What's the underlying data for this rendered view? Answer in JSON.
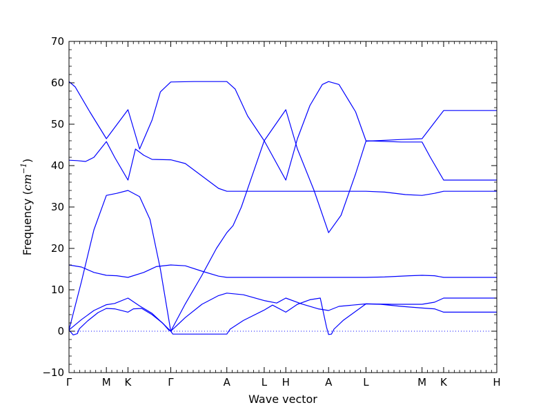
{
  "chart_data": {
    "type": "line",
    "title": "",
    "xlabel": "Wave vector",
    "ylabel_text": "Frequency (",
    "ylabel_unit": "cm",
    "ylabel_exp": "−1",
    "ylabel_close": ")",
    "ylim": [
      -10,
      70
    ],
    "xlim": [
      0,
      10.3
    ],
    "y_ticks": [
      -10,
      0,
      10,
      20,
      30,
      40,
      50,
      60,
      70
    ],
    "y_tick_labels": [
      "−10",
      "0",
      "10",
      "20",
      "30",
      "40",
      "50",
      "60",
      "70"
    ],
    "k_points": [
      {
        "x": 0.0,
        "label": "Γ"
      },
      {
        "x": 0.9,
        "label": "M"
      },
      {
        "x": 1.42,
        "label": "K"
      },
      {
        "x": 2.45,
        "label": "Γ"
      },
      {
        "x": 3.8,
        "label": "A"
      },
      {
        "x": 4.7,
        "label": "L"
      },
      {
        "x": 5.22,
        "label": "H"
      },
      {
        "x": 6.25,
        "label": "A"
      },
      {
        "x": 7.15,
        "label": "L"
      },
      {
        "x": 8.5,
        "label": "M"
      },
      {
        "x": 9.02,
        "label": "K"
      },
      {
        "x": 10.3,
        "label": "H"
      }
    ],
    "zero_line": {
      "y": 0,
      "style": "dotted",
      "color": "#0000ff"
    },
    "line_color": "#0000ff",
    "series": [
      {
        "points": [
          [
            0,
            0.3
          ],
          [
            0.1,
            -0.9
          ],
          [
            0.2,
            -0.6
          ],
          [
            0.25,
            0.6
          ],
          [
            0.45,
            2.5
          ],
          [
            0.7,
            4.5
          ],
          [
            0.9,
            5.5
          ],
          [
            1.1,
            5.4
          ],
          [
            1.3,
            4.9
          ],
          [
            1.42,
            4.6
          ],
          [
            1.55,
            5.4
          ],
          [
            1.75,
            5.5
          ],
          [
            2.0,
            4.0
          ],
          [
            2.25,
            2.0
          ],
          [
            2.4,
            0.3
          ],
          [
            2.45,
            0
          ],
          [
            2.5,
            -0.7
          ],
          [
            2.7,
            -0.7
          ],
          [
            3.3,
            -0.7
          ],
          [
            3.8,
            -0.7
          ],
          [
            3.88,
            0.5
          ],
          [
            4.2,
            2.6
          ],
          [
            4.7,
            5.1
          ],
          [
            4.9,
            6.3
          ],
          [
            5.22,
            4.6
          ],
          [
            5.5,
            6.5
          ],
          [
            5.8,
            7.6
          ],
          [
            6.05,
            8.0
          ],
          [
            6.2,
            1.0
          ],
          [
            6.25,
            -0.8
          ],
          [
            6.32,
            -0.7
          ],
          [
            6.38,
            0.5
          ],
          [
            6.6,
            2.6
          ],
          [
            7.15,
            6.6
          ],
          [
            7.5,
            6.5
          ],
          [
            8.0,
            6.0
          ],
          [
            8.5,
            5.6
          ],
          [
            8.8,
            5.4
          ],
          [
            9.02,
            4.6
          ],
          [
            10.3,
            4.6
          ]
        ]
      },
      {
        "points": [
          [
            0,
            0.3
          ],
          [
            0.3,
            2.8
          ],
          [
            0.6,
            5.0
          ],
          [
            0.9,
            6.4
          ],
          [
            1.1,
            6.7
          ],
          [
            1.42,
            8.0
          ],
          [
            1.7,
            6.1
          ],
          [
            2.0,
            4.3
          ],
          [
            2.3,
            1.5
          ],
          [
            2.45,
            0
          ],
          [
            2.8,
            3.3
          ],
          [
            3.2,
            6.5
          ],
          [
            3.6,
            8.6
          ],
          [
            3.8,
            9.2
          ],
          [
            4.2,
            8.8
          ],
          [
            4.7,
            7.4
          ],
          [
            5.0,
            6.8
          ],
          [
            5.22,
            8.0
          ],
          [
            5.6,
            6.6
          ],
          [
            6.0,
            5.4
          ],
          [
            6.25,
            5.0
          ],
          [
            6.5,
            6.0
          ],
          [
            7.15,
            6.6
          ],
          [
            7.8,
            6.5
          ],
          [
            8.5,
            6.5
          ],
          [
            8.8,
            7.0
          ],
          [
            9.02,
            8.0
          ],
          [
            10.3,
            8.0
          ]
        ]
      },
      {
        "points": [
          [
            0,
            16.0
          ],
          [
            0.3,
            15.5
          ],
          [
            0.6,
            14.2
          ],
          [
            0.9,
            13.5
          ],
          [
            1.15,
            13.4
          ],
          [
            1.42,
            13.0
          ],
          [
            1.8,
            14.2
          ],
          [
            2.1,
            15.6
          ],
          [
            2.45,
            16.0
          ],
          [
            2.8,
            15.8
          ],
          [
            3.2,
            14.5
          ],
          [
            3.6,
            13.3
          ],
          [
            3.8,
            13.0
          ],
          [
            4.7,
            13.0
          ],
          [
            5.22,
            13.0
          ],
          [
            6.25,
            13.0
          ],
          [
            7.15,
            13.0
          ],
          [
            7.6,
            13.1
          ],
          [
            8.2,
            13.4
          ],
          [
            8.5,
            13.5
          ],
          [
            8.8,
            13.4
          ],
          [
            9.02,
            13.0
          ],
          [
            10.3,
            13.0
          ]
        ]
      },
      {
        "points": [
          [
            0,
            0.3
          ],
          [
            0.3,
            12.0
          ],
          [
            0.6,
            24.5
          ],
          [
            0.9,
            32.8
          ],
          [
            1.15,
            33.3
          ],
          [
            1.42,
            34.0
          ],
          [
            1.7,
            32.5
          ],
          [
            1.95,
            27.0
          ],
          [
            2.2,
            15.0
          ],
          [
            2.45,
            0
          ],
          [
            2.8,
            6.6
          ],
          [
            3.2,
            13.5
          ],
          [
            3.55,
            20.0
          ],
          [
            3.8,
            23.8
          ],
          [
            3.95,
            25.5
          ],
          [
            4.15,
            30.0
          ],
          [
            4.7,
            46.0
          ],
          [
            5.22,
            53.5
          ],
          [
            5.5,
            44.0
          ],
          [
            5.9,
            34.0
          ],
          [
            6.25,
            23.8
          ],
          [
            6.55,
            28.0
          ],
          [
            6.9,
            38.0
          ],
          [
            7.15,
            45.9
          ],
          [
            8.0,
            46.3
          ],
          [
            8.5,
            46.5
          ],
          [
            9.02,
            53.3
          ],
          [
            10.3,
            53.3
          ]
        ]
      },
      {
        "points": [
          [
            0,
            60.3
          ],
          [
            0.15,
            59.0
          ],
          [
            0.5,
            53.0
          ],
          [
            0.9,
            46.5
          ],
          [
            1.42,
            53.5
          ],
          [
            1.7,
            44.0
          ],
          [
            2.0,
            51.0
          ],
          [
            2.2,
            57.8
          ],
          [
            2.45,
            60.2
          ],
          [
            3.0,
            60.3
          ],
          [
            3.6,
            60.3
          ],
          [
            3.8,
            60.3
          ],
          [
            4.0,
            58.5
          ],
          [
            4.3,
            52.0
          ],
          [
            4.7,
            46.0
          ],
          [
            5.22,
            36.5
          ],
          [
            5.5,
            46.5
          ],
          [
            5.8,
            54.5
          ],
          [
            6.1,
            59.6
          ],
          [
            6.25,
            60.3
          ],
          [
            6.5,
            59.6
          ],
          [
            6.9,
            53.0
          ],
          [
            7.15,
            46.0
          ],
          [
            8.0,
            45.7
          ],
          [
            8.5,
            45.7
          ],
          [
            8.7,
            42.0
          ],
          [
            9.02,
            36.5
          ],
          [
            10.3,
            36.5
          ]
        ]
      },
      {
        "points": [
          [
            0,
            41.3
          ],
          [
            0.2,
            41.2
          ],
          [
            0.4,
            41.0
          ],
          [
            0.6,
            42.0
          ],
          [
            0.9,
            45.8
          ],
          [
            1.1,
            42.0
          ],
          [
            1.42,
            36.5
          ],
          [
            1.6,
            44.0
          ],
          [
            1.8,
            42.5
          ],
          [
            2.0,
            41.5
          ],
          [
            2.45,
            41.4
          ],
          [
            2.8,
            40.5
          ],
          [
            3.2,
            37.5
          ],
          [
            3.6,
            34.5
          ],
          [
            3.8,
            33.8
          ],
          [
            4.7,
            33.8
          ],
          [
            5.22,
            33.8
          ],
          [
            6.25,
            33.8
          ],
          [
            7.15,
            33.8
          ],
          [
            7.6,
            33.6
          ],
          [
            8.1,
            33.0
          ],
          [
            8.5,
            32.8
          ],
          [
            8.8,
            33.3
          ],
          [
            9.02,
            33.8
          ],
          [
            10.3,
            33.8
          ]
        ]
      }
    ]
  }
}
